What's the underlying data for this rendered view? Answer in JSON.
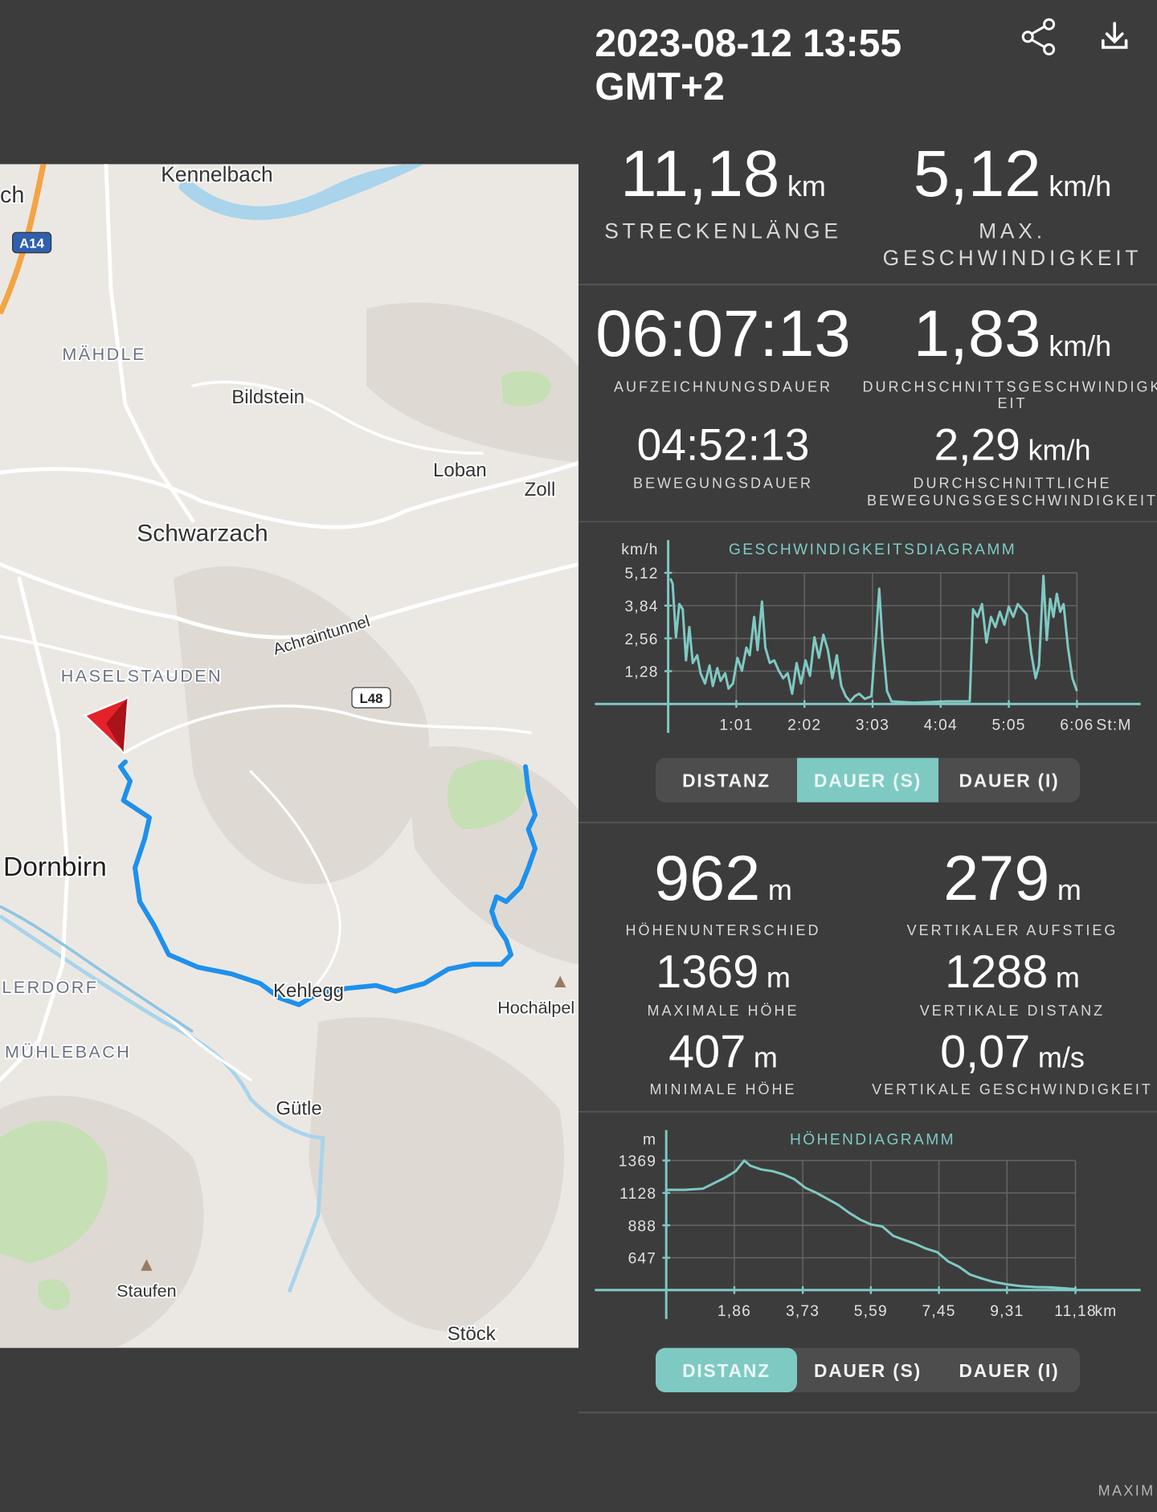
{
  "header": {
    "title_lines": [
      "2023-08-12 13:55",
      "GMT+2"
    ]
  },
  "map": {
    "labels": [
      "Kennelbach",
      "ch",
      "A14",
      "MÄHDLE",
      "Bildstein",
      "Loban",
      "Zoll",
      "Schwarzach",
      "Achraintunnel",
      "HASELSTAUDEN",
      "L48",
      "Dornbirn",
      "Kehlegg",
      "Hochälpel",
      "LERDORF",
      "MÜHLEBACH",
      "Gütle",
      "Staufen",
      "Stöck"
    ]
  },
  "stats": [
    {
      "value": "11,18",
      "unit": "km",
      "label_lines": [
        "STRECKENLÄNGE"
      ]
    },
    {
      "value": "5,12",
      "unit": "km/h",
      "label_lines": [
        "MAX.",
        "GESCHWINDIGKEIT"
      ]
    },
    {
      "value": "06:07:13",
      "label_lines": [
        "AUFZEICHNUNGSDAUER"
      ]
    },
    {
      "value": "1,83",
      "unit": "km/h",
      "label_lines": [
        "DURCHSCHNITTSGESCHWINDIGK",
        "EIT"
      ]
    },
    {
      "value": "04:52:13",
      "label_lines": [
        "BEWEGUNGSDAUER"
      ]
    },
    {
      "value": "2,29",
      "unit": "km/h",
      "label_lines": [
        "DURCHSCHNITTLICHE",
        "BEWEGUNGSGESCHWINDIGKEIT"
      ]
    },
    {
      "value": "962",
      "unit": "m",
      "label_lines": [
        "HÖHENUNTERSCHIED"
      ]
    },
    {
      "value": "279",
      "unit": "m",
      "label_lines": [
        "VERTIKALER AUFSTIEG"
      ]
    },
    {
      "value": "1369",
      "unit": "m",
      "label_lines": [
        "MAXIMALE HÖHE"
      ]
    },
    {
      "value": "1288",
      "unit": "m",
      "label_lines": [
        "VERTIKALE DISTANZ"
      ]
    },
    {
      "value": "407",
      "unit": "m",
      "label_lines": [
        "MINIMALE HÖHE"
      ]
    },
    {
      "value": "0,07",
      "unit": "m/s",
      "label_lines": [
        "VERTIKALE GESCHWINDIGKEIT"
      ]
    }
  ],
  "chart_data": [
    {
      "type": "line",
      "title": "GESCHWINDIGKEITSDIAGRAMM",
      "y_unit": "km/h",
      "x_unit": "St:M",
      "grid": true,
      "xlim": [
        0,
        423
      ],
      "ylim": [
        0,
        6.4
      ],
      "xticks": [
        {
          "value": 61,
          "label": "1:01"
        },
        {
          "value": 122,
          "label": "2:02"
        },
        {
          "value": 183,
          "label": "3:03"
        },
        {
          "value": 244,
          "label": "4:04"
        },
        {
          "value": 305,
          "label": "5:05"
        },
        {
          "value": 366,
          "label": "6:06"
        }
      ],
      "yticks": [
        {
          "value": 1.28,
          "label": "1,28"
        },
        {
          "value": 2.56,
          "label": "2,56"
        },
        {
          "value": 3.84,
          "label": "3,84"
        },
        {
          "value": 5.12,
          "label": "5,12"
        }
      ],
      "x": [
        2,
        4,
        7,
        10,
        13,
        16,
        19,
        22,
        26,
        29,
        33,
        37,
        40,
        44,
        47,
        51,
        54,
        58,
        62,
        66,
        70,
        73,
        77,
        80,
        84,
        87,
        91,
        95,
        99,
        103,
        107,
        111,
        115,
        119,
        123,
        127,
        131,
        135,
        139,
        143,
        147,
        151,
        155,
        159,
        163,
        167,
        171,
        176,
        182,
        186,
        189,
        192,
        196,
        200,
        220,
        250,
        270,
        273,
        277,
        281,
        285,
        289,
        293,
        297,
        301,
        305,
        309,
        313,
        317,
        321,
        325,
        329,
        332,
        336,
        339,
        342,
        345,
        348,
        351,
        354,
        358,
        362,
        366
      ],
      "series": [
        {
          "color": "#7fc9c3",
          "values": [
            4.9,
            4.7,
            2.6,
            3.9,
            3.7,
            1.7,
            3.0,
            1.6,
            1.9,
            1.2,
            0.8,
            1.5,
            0.7,
            1.4,
            0.9,
            1.2,
            0.6,
            0.8,
            1.8,
            1.3,
            2.2,
            1.9,
            3.4,
            2.1,
            4.0,
            2.2,
            1.6,
            1.7,
            1.3,
            1.0,
            1.2,
            0.4,
            1.6,
            0.8,
            1.7,
            1.1,
            2.6,
            1.8,
            2.7,
            2.1,
            1.0,
            1.9,
            0.7,
            0.3,
            0.1,
            0.3,
            0.4,
            0.2,
            0.3,
            2.6,
            4.5,
            2.4,
            0.5,
            0.1,
            0.05,
            0.1,
            0.1,
            3.7,
            3.4,
            3.9,
            2.4,
            3.4,
            3.0,
            3.6,
            3.1,
            3.8,
            3.4,
            3.9,
            3.7,
            3.5,
            2.0,
            1.0,
            1.5,
            5.0,
            2.5,
            4.1,
            3.4,
            4.3,
            3.6,
            3.9,
            2.2,
            1.0,
            0.5
          ]
        }
      ]
    },
    {
      "type": "line",
      "title": "HÖHENDIAGRAMM",
      "y_unit": "m",
      "x_unit": "km",
      "grid": true,
      "xlim": [
        0,
        12.96
      ],
      "ylim": [
        407,
        1595
      ],
      "xticks": [
        {
          "value": 1.86,
          "label": "1,86"
        },
        {
          "value": 3.73,
          "label": "3,73"
        },
        {
          "value": 5.59,
          "label": "5,59"
        },
        {
          "value": 7.45,
          "label": "7,45"
        },
        {
          "value": 9.31,
          "label": "9,31"
        },
        {
          "value": 11.18,
          "label": "11,18"
        }
      ],
      "yticks": [
        647,
        888,
        1128,
        1369
      ],
      "x": [
        0,
        0.5,
        1.0,
        1.3,
        1.6,
        1.9,
        2.13,
        2.3,
        2.6,
        2.9,
        3.2,
        3.5,
        3.8,
        4.1,
        4.4,
        4.7,
        5.0,
        5.3,
        5.6,
        5.9,
        6.2,
        6.5,
        6.8,
        7.1,
        7.4,
        7.7,
        8.0,
        8.3,
        8.6,
        8.9,
        9.3,
        9.7,
        10.1,
        10.5,
        10.9,
        11.18
      ],
      "series": [
        {
          "color": "#7fc9c3",
          "values": [
            1151,
            1151,
            1160,
            1200,
            1240,
            1290,
            1369,
            1330,
            1302,
            1290,
            1266,
            1230,
            1166,
            1130,
            1085,
            1040,
            980,
            930,
            894,
            880,
            810,
            780,
            751,
            715,
            690,
            620,
            580,
            522,
            495,
            471,
            450,
            436,
            430,
            428,
            420,
            414
          ]
        }
      ]
    }
  ],
  "toggles": [
    {
      "options": [
        "DISTANZ",
        "DAUER (S)",
        "DAUER (I)"
      ],
      "active": 1
    },
    {
      "options": [
        "DISTANZ",
        "DAUER (S)",
        "DAUER (I)"
      ],
      "active": 0
    }
  ],
  "footer": {
    "text": "MAXIM"
  }
}
